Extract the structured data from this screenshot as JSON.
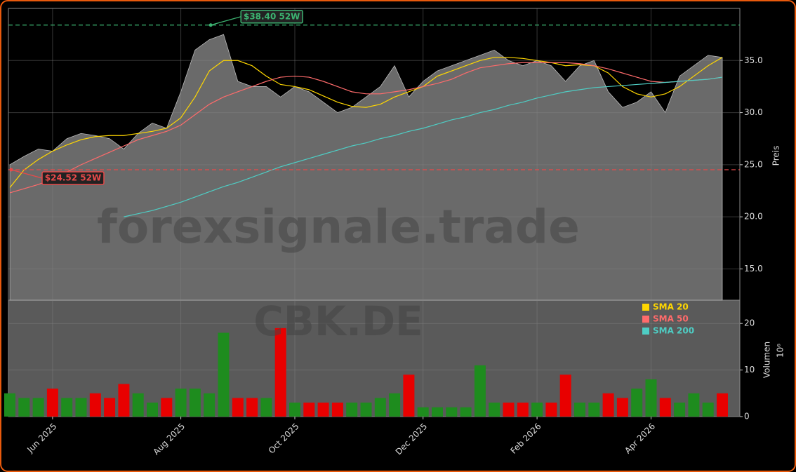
{
  "chart_data": {
    "type": "area",
    "watermark": "forexsignale.trade",
    "ticker": "CBK.DE",
    "ylabel": "Preis",
    "categories": [
      null,
      null,
      null,
      "Jun 2025",
      null,
      null,
      null,
      null,
      null,
      null,
      null,
      null,
      "Aug 2025",
      null,
      null,
      null,
      null,
      null,
      null,
      null,
      "Oct 2025",
      null,
      null,
      null,
      null,
      null,
      null,
      null,
      null,
      "Dec 2025",
      null,
      null,
      null,
      null,
      null,
      null,
      null,
      "Feb 2026",
      null,
      null,
      null,
      null,
      null,
      null,
      null,
      "Apr 2026",
      null,
      null,
      null,
      null,
      null
    ],
    "ylim": [
      12,
      40
    ],
    "yticks": [
      {
        "value": 15,
        "label": "15.0"
      },
      {
        "value": 20,
        "label": "20.0"
      },
      {
        "value": 25,
        "label": "25.0"
      },
      {
        "value": 30,
        "label": "30.0"
      },
      {
        "value": 35,
        "label": "35.0"
      }
    ],
    "grid": true,
    "price": {
      "color": "#6a6a6a",
      "values": [
        25.0,
        25.8,
        26.5,
        26.3,
        27.5,
        28.0,
        27.8,
        27.5,
        26.5,
        28.0,
        29.0,
        28.5,
        32.0,
        36.0,
        37.0,
        37.5,
        33.0,
        32.5,
        32.5,
        31.5,
        32.5,
        32.0,
        31.0,
        30.0,
        30.5,
        31.5,
        32.5,
        34.5,
        31.5,
        33.0,
        34.0,
        34.5,
        35.0,
        35.5,
        36.0,
        35.0,
        34.5,
        35.0,
        34.5,
        33.0,
        34.5,
        35.0,
        32.0,
        30.5,
        31.0,
        32.0,
        30.0,
        33.5,
        34.5,
        35.5,
        35.3
      ]
    },
    "series": [
      {
        "name": "SMA 20",
        "color": "#ffd700",
        "values": [
          22.8,
          24.5,
          25.5,
          26.3,
          26.9,
          27.4,
          27.7,
          27.8,
          27.8,
          28.0,
          28.2,
          28.5,
          29.5,
          31.5,
          34.0,
          35.0,
          35.0,
          34.5,
          33.5,
          32.7,
          32.5,
          32.2,
          31.6,
          31.0,
          30.6,
          30.5,
          30.8,
          31.5,
          32.0,
          32.5,
          33.5,
          34.0,
          34.5,
          35.0,
          35.3,
          35.3,
          35.2,
          35.0,
          34.8,
          34.5,
          34.6,
          34.5,
          33.8,
          32.5,
          31.8,
          31.5,
          31.8,
          32.5,
          33.5,
          34.5,
          35.3
        ]
      },
      {
        "name": "SMA 50",
        "color": "#ff6b6b",
        "values": [
          22.3,
          22.7,
          23.1,
          23.6,
          24.3,
          25.0,
          25.6,
          26.2,
          26.8,
          27.4,
          27.8,
          28.2,
          28.8,
          29.8,
          30.8,
          31.5,
          32.0,
          32.5,
          33.0,
          33.4,
          33.5,
          33.4,
          33.0,
          32.5,
          32.0,
          31.8,
          31.8,
          32.0,
          32.2,
          32.5,
          32.8,
          33.2,
          33.8,
          34.3,
          34.5,
          34.7,
          34.8,
          34.8,
          34.8,
          34.8,
          34.7,
          34.5,
          34.2,
          33.8,
          33.4,
          33.0,
          32.9,
          33.0,
          33.1,
          33.2,
          33.4
        ]
      },
      {
        "name": "SMA 200",
        "color": "#4ecdc4",
        "values": [
          null,
          null,
          null,
          null,
          null,
          null,
          null,
          null,
          20.0,
          20.3,
          20.6,
          21.0,
          21.4,
          21.9,
          22.4,
          22.9,
          23.3,
          23.8,
          24.3,
          24.8,
          25.2,
          25.6,
          26.0,
          26.4,
          26.8,
          27.1,
          27.5,
          27.8,
          28.2,
          28.5,
          28.9,
          29.3,
          29.6,
          30.0,
          30.3,
          30.7,
          31.0,
          31.4,
          31.7,
          32.0,
          32.2,
          32.4,
          32.5,
          32.6,
          32.7,
          32.8,
          32.9,
          33.0,
          33.1,
          33.2,
          33.4
        ]
      }
    ],
    "annotations": [
      {
        "value": 38.4,
        "label": "$38.40 52W",
        "color": "#3cb371",
        "at": 14
      },
      {
        "value": 24.52,
        "label": "$24.52 52W",
        "color": "#e84a4a",
        "at": 0
      }
    ],
    "volume": {
      "label": "Volumen",
      "offset": "10⁶",
      "up_color": "#1e8c1e",
      "down_color": "#e80000",
      "ylim": [
        0,
        25
      ],
      "yticks": [
        0,
        10,
        20
      ],
      "values": [
        5,
        4,
        4,
        6,
        4,
        4,
        5,
        4,
        7,
        5,
        3,
        4,
        6,
        6,
        5,
        18,
        4,
        4,
        4,
        19,
        3,
        3,
        3,
        3,
        3,
        3,
        4,
        5,
        9,
        2,
        2,
        2,
        2,
        11,
        3,
        3,
        3,
        3,
        3,
        9,
        3,
        3,
        5,
        4,
        6,
        8,
        4,
        3,
        5,
        3,
        5
      ]
    }
  }
}
